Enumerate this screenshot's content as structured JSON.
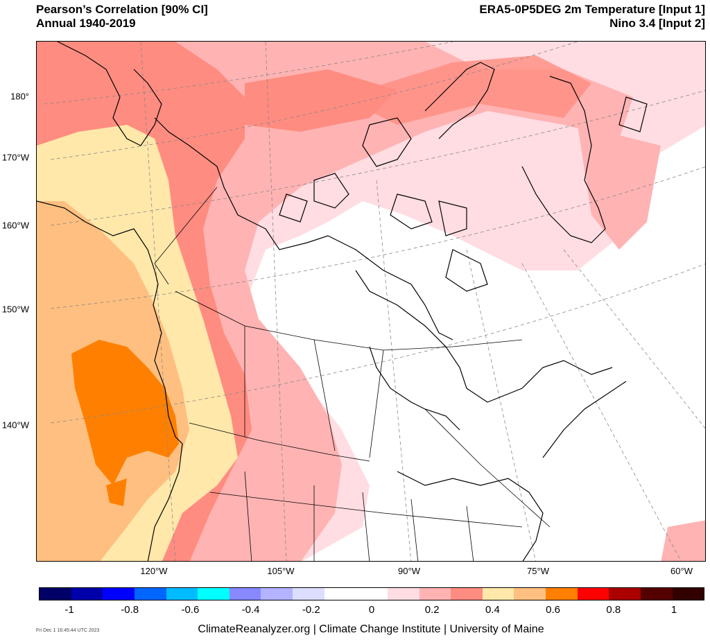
{
  "header": {
    "left_line1": "Pearson’s Correlation [90% CI]",
    "left_line2": "Annual 1940-2019",
    "right_line1": "ERA5-0P5DEG 2m Temperature [Input 1]",
    "right_line2": "Nino 3.4 [Input 2]"
  },
  "map": {
    "region": "North America (Canada / USA)",
    "projection": "polar stereographic",
    "lat_labels": [
      "180°",
      "170°W",
      "160°W",
      "150°W",
      "140°W"
    ],
    "lon_labels": [
      "120°W",
      "105°W",
      "90°W",
      "75°W",
      "60°W"
    ]
  },
  "colorbar": {
    "colors": [
      "#000066",
      "#0000aa",
      "#0000ff",
      "#0066ff",
      "#00bbff",
      "#00ffff",
      "#8888ff",
      "#b3b3ff",
      "#ddddff",
      "#ffffff",
      "#ffffff",
      "#ffdde2",
      "#ffb3b3",
      "#ff8c80",
      "#ffe8aa",
      "#ffbf80",
      "#ff8000",
      "#ff0000",
      "#aa0000",
      "#550000",
      "#330000"
    ],
    "tick_labels": [
      "-1",
      "-0.8",
      "-0.6",
      "-0.4",
      "-0.2",
      "0",
      "0.2",
      "0.4",
      "0.6",
      "0.8",
      "1"
    ]
  },
  "footer": {
    "timestamp": "Fri Dec  1 16:45:44 UTC 2023",
    "credit": "ClimateReanalyzer.org | Climate Change Institute | University of Maine"
  }
}
